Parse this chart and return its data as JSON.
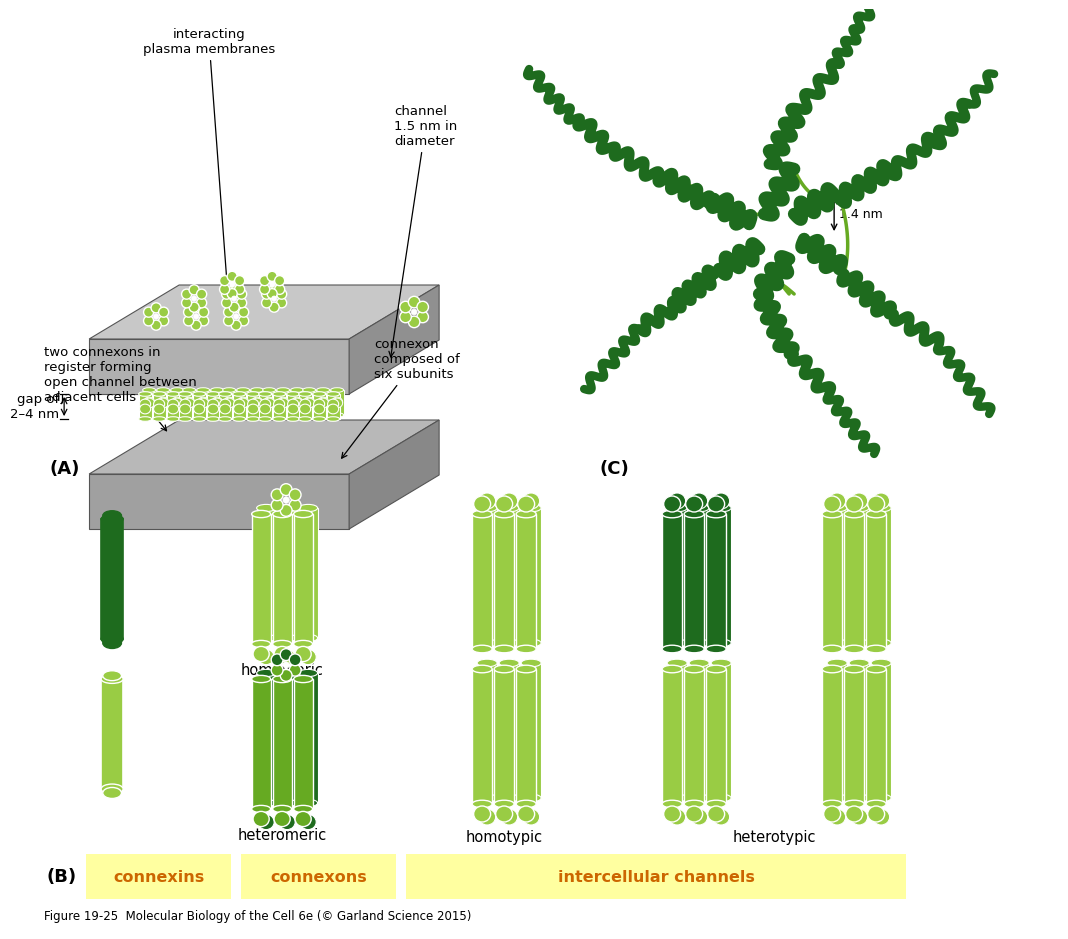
{
  "bg_color": "#ffffff",
  "light_green": "#99cc44",
  "mid_green": "#66aa22",
  "dark_green": "#1e6b1e",
  "yellow_bg": "#ffffa0",
  "title_A": "(A)",
  "title_B": "(B)",
  "title_C": "(C)",
  "label_interacting": "interacting\nplasma membranes",
  "label_channel": "channel\n1.5 nm in\ndiameter",
  "label_gap": "gap of\n2–4 nm",
  "label_two_connexons": "two connexons in\nregister forming\nopen channel between\nadjacent cells",
  "label_connexon_subunits": "connexon\ncomposed of\nsix subunits",
  "label_homomeric": "homomeric",
  "label_heteromeric": "heteromeric",
  "label_homotypic": "homotypic",
  "label_heterotypic": "heterotypic",
  "label_connexins": "connexins",
  "label_connexons": "connexons",
  "label_intercellular": "intercellular channels",
  "label_14nm": "1.4 nm",
  "figcaption": "Figure 19-25  Molecular Biology of the Cell 6e (© Garland Science 2015)"
}
